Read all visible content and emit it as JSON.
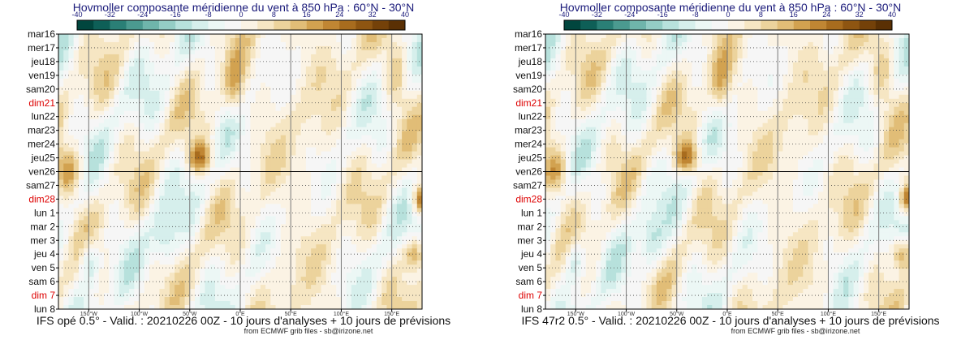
{
  "colors": {
    "title": "#1a1a7a",
    "weekend": "#dd0000",
    "text": "#111111",
    "colorbar": [
      "#01463e",
      "#0e5f57",
      "#2a7f76",
      "#4b9a90",
      "#6fb5ab",
      "#94cdc5",
      "#b7e1dc",
      "#d6efec",
      "#ecf7f5",
      "#f6f6f6",
      "#fbf3e4",
      "#f6e6c3",
      "#ecd39c",
      "#e1bd77",
      "#d2a250",
      "#c08633",
      "#a86c1e",
      "#8e5511",
      "#744109",
      "#5a3004"
    ]
  },
  "panels": [
    {
      "title": "Hovmoller composante méridienne du vent à 850 hPa : 60°N - 30°N",
      "footer": "IFS opé 0.5° - Valid. : 20210226 00Z - 10 jours d'analyses + 10 jours de prévisions",
      "credit": "from ECMWF grib files - sb@irizone.net"
    },
    {
      "title": "Hovmoller composante méridienne du vent à 850 hPa : 60°N - 30°N",
      "footer": "IFS 47r2 0.5° - Valid. : 20210226 00Z - 10 jours d'analyses + 10 jours de prévisions",
      "credit": "from ECMWF grib files - sb@irizone.net"
    }
  ],
  "chart_data": {
    "type": "heatmap",
    "variable": "composante méridienne du vent à 850 hPa",
    "latitude_band": "60°N - 30°N",
    "colorbar_ticks": [
      "-40",
      "-32",
      "-24",
      "-16",
      "-8",
      "0",
      "8",
      "16",
      "24",
      "32",
      "40"
    ],
    "colorbar_range": [
      -40,
      40
    ],
    "colorbar_step": 4,
    "x_ticks": [
      "150°W",
      "100°W",
      "50°W",
      "0°E",
      "50°E",
      "100°E",
      "150°E"
    ],
    "x_range_deg": [
      -180,
      180
    ],
    "x_tick_values": [
      -150,
      -100,
      -50,
      0,
      50,
      100,
      150
    ],
    "y_ticks": [
      {
        "label": "mar16",
        "weekend": false
      },
      {
        "label": "mer17",
        "weekend": false
      },
      {
        "label": "jeu18",
        "weekend": false
      },
      {
        "label": "ven19",
        "weekend": false
      },
      {
        "label": "sam20",
        "weekend": false
      },
      {
        "label": "dim21",
        "weekend": true
      },
      {
        "label": "lun22",
        "weekend": false
      },
      {
        "label": "mar23",
        "weekend": false
      },
      {
        "label": "mer24",
        "weekend": false
      },
      {
        "label": "jeu25",
        "weekend": false
      },
      {
        "label": "ven26",
        "weekend": false
      },
      {
        "label": "sam27",
        "weekend": false
      },
      {
        "label": "dim28",
        "weekend": true
      },
      {
        "label": "lun 1",
        "weekend": false
      },
      {
        "label": "mar 2",
        "weekend": false
      },
      {
        "label": "mer 3",
        "weekend": false
      },
      {
        "label": "jeu 4",
        "weekend": false
      },
      {
        "label": "ven 5",
        "weekend": false
      },
      {
        "label": "sam 6",
        "weekend": false
      },
      {
        "label": "dim 7",
        "weekend": true
      },
      {
        "label": "lun 8",
        "weekend": false
      }
    ],
    "analysis_end_label": "ven26"
  }
}
